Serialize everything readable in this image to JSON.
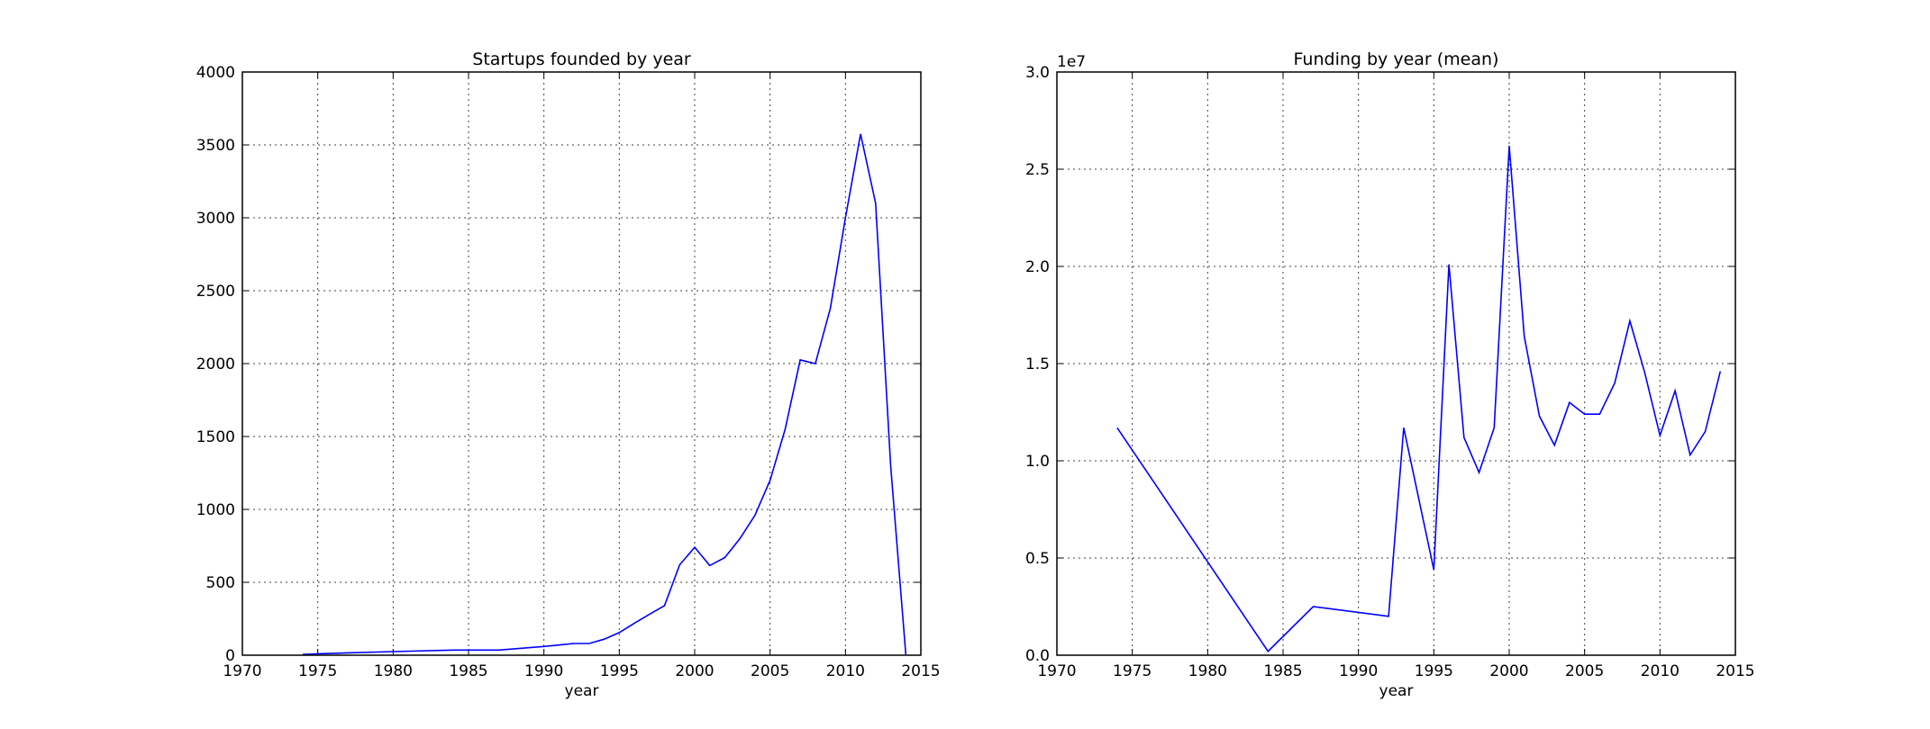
{
  "chart_data": [
    {
      "type": "line",
      "title": "Startups founded by year",
      "xlabel": "year",
      "ylabel": "",
      "xlim": [
        1970,
        2015
      ],
      "ylim": [
        0,
        4000
      ],
      "xticks": [
        "1970",
        "1975",
        "1980",
        "1985",
        "1990",
        "1995",
        "2000",
        "2005",
        "2010",
        "2015"
      ],
      "yticks": [
        "0",
        "500",
        "1000",
        "1500",
        "2000",
        "2500",
        "3000",
        "3500",
        "4000"
      ],
      "y_offset_label": "",
      "grid": true,
      "series": [
        {
          "color": "#0000ff",
          "x": [
            1974,
            1975,
            1980,
            1984,
            1986,
            1987,
            1990,
            1991,
            1992,
            1993,
            1994,
            1995,
            1996,
            1997,
            1998,
            1999,
            2000,
            2001,
            2002,
            2003,
            2004,
            2005,
            2006,
            2007,
            2008,
            2009,
            2010,
            2011,
            2012,
            2013,
            2014
          ],
          "y": [
            5,
            10,
            25,
            35,
            35,
            35,
            60,
            70,
            80,
            80,
            110,
            155,
            220,
            280,
            340,
            620,
            740,
            615,
            670,
            800,
            960,
            1200,
            1550,
            2025,
            2000,
            2380,
            3000,
            3575,
            3100,
            1300,
            5
          ]
        }
      ]
    },
    {
      "type": "line",
      "title": "Funding by year (mean)",
      "xlabel": "year",
      "ylabel": "",
      "xlim": [
        1970,
        2015
      ],
      "ylim": [
        0,
        3.0
      ],
      "xticks": [
        "1970",
        "1975",
        "1980",
        "1985",
        "1990",
        "1995",
        "2000",
        "2005",
        "2010",
        "2015"
      ],
      "yticks": [
        "0.0",
        "0.5",
        "1.0",
        "1.5",
        "2.0",
        "2.5",
        "3.0"
      ],
      "y_offset_label": "1e7",
      "grid": true,
      "series": [
        {
          "color": "#0000ff",
          "x": [
            1974,
            1984,
            1987,
            1992,
            1993,
            1995,
            1996,
            1997,
            1998,
            1999,
            2000,
            2001,
            2002,
            2003,
            2004,
            2005,
            2006,
            2007,
            2008,
            2009,
            2010,
            2011,
            2012,
            2013,
            2014
          ],
          "y": [
            1.17,
            0.02,
            0.25,
            0.2,
            1.17,
            0.44,
            2.01,
            1.12,
            0.94,
            1.17,
            2.62,
            1.64,
            1.23,
            1.08,
            1.3,
            1.24,
            1.24,
            1.4,
            1.72,
            1.45,
            1.13,
            1.36,
            1.03,
            1.15,
            1.46
          ]
        }
      ]
    }
  ]
}
